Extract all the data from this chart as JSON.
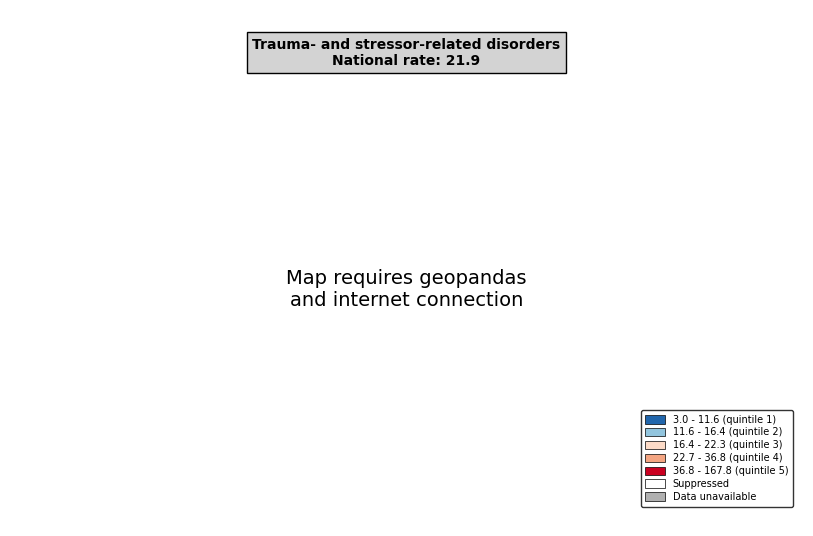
{
  "title_line1": "Trauma- and stressor-related disorders",
  "title_line2": "National rate: 21.9",
  "legend_items": [
    {
      "label": "3.0 - 11.6 (quintile 1)",
      "color": "#2166ac"
    },
    {
      "label": "11.6 - 16.4 (quintile 2)",
      "color": "#92c5de"
    },
    {
      "label": "16.4 - 22.3 (quintile 3)",
      "color": "#fddbc7"
    },
    {
      "label": "22.7 - 36.8 (quintile 4)",
      "color": "#f4a582"
    },
    {
      "label": "36.8 - 167.8 (quintile 5)",
      "color": "#ca0020"
    },
    {
      "label": "Suppressed",
      "color": "#ffffff"
    },
    {
      "label": "Data unavailable",
      "color": "#b0b0b0"
    }
  ],
  "background_color": "#ffffff",
  "fig_width": 8.13,
  "fig_height": 5.36,
  "dpi": 100
}
